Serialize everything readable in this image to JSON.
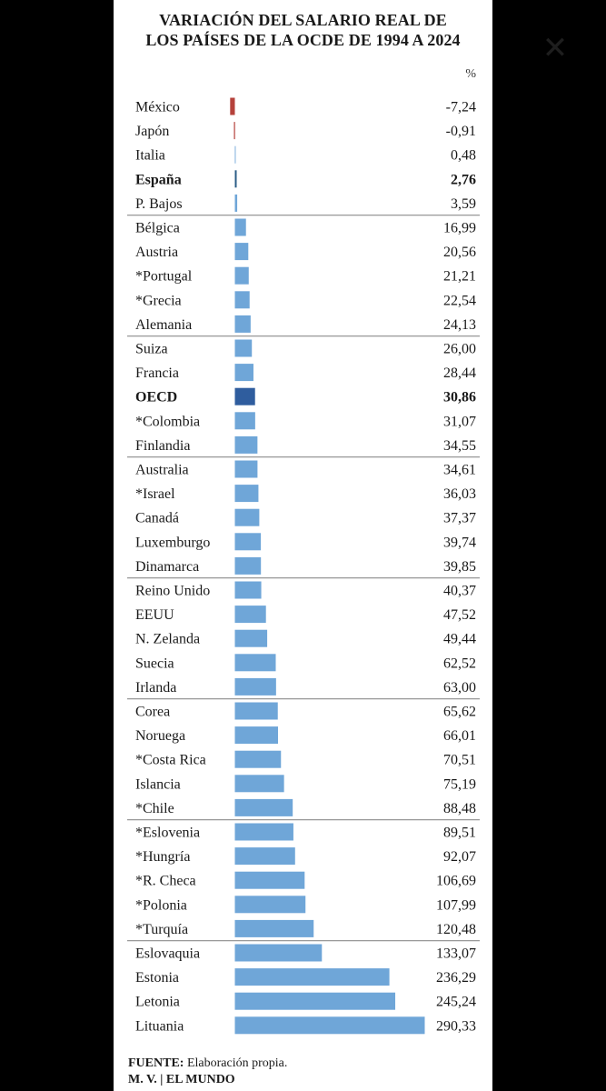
{
  "title_line1": "VARIACIÓN DEL SALARIO REAL DE",
  "title_line2": "LOS PAÍSES DE LA OCDE DE 1994 A 2024",
  "footer": {
    "source_label": "FUENTE:",
    "source_text": " Elaboración propia.",
    "credit": "M. V. | EL MUNDO"
  },
  "colors": {
    "bar": "#6fa6d8",
    "bar_negative": "#b5423b",
    "bar_spain": "#2a5c86",
    "bar_oecd": "#2f5d9e",
    "separator": "#8c8c8c"
  },
  "chart_data": {
    "type": "bar",
    "orientation": "horizontal",
    "unit": "%",
    "title": "VARIACIÓN DEL SALARIO REAL DE LOS PAÍSES DE LA OCDE DE 1994 A 2024",
    "categories": [
      "México",
      "Japón",
      "Italia",
      "España",
      "P. Bajos",
      "Bélgica",
      "Austria",
      "*Portugal",
      "*Grecia",
      "Alemania",
      "Suiza",
      "Francia",
      "OECD",
      "*Colombia",
      "Finlandia",
      "Australia",
      "*Israel",
      "Canadá",
      "Luxemburgo",
      "Dinamarca",
      "Reino Unido",
      "EEUU",
      "N. Zelanda",
      "Suecia",
      "Irlanda",
      "Corea",
      "Noruega",
      "*Costa Rica",
      "Islancia",
      "*Chile",
      "*Eslovenia",
      "*Hungría",
      "*R. Checa",
      "*Polonia",
      "*Turquía",
      "Eslovaquia",
      "Estonia",
      "Letonia",
      "Lituania"
    ],
    "values": [
      -7.24,
      -0.91,
      0.48,
      2.76,
      3.59,
      16.99,
      20.56,
      21.21,
      22.54,
      24.13,
      26.0,
      28.44,
      30.86,
      31.07,
      34.55,
      34.61,
      36.03,
      37.37,
      39.74,
      39.85,
      40.37,
      47.52,
      49.44,
      62.52,
      63.0,
      65.62,
      66.01,
      70.51,
      75.19,
      88.48,
      89.51,
      92.07,
      106.69,
      107.99,
      120.48,
      133.07,
      236.29,
      245.24,
      290.33
    ],
    "value_labels": [
      "-7,24",
      "-0,91",
      "0,48",
      "2,76",
      "3,59",
      "16,99",
      "20,56",
      "21,21",
      "22,54",
      "24,13",
      "26,00",
      "28,44",
      "30,86",
      "31,07",
      "34,55",
      "34,61",
      "36,03",
      "37,37",
      "39,74",
      "39,85",
      "40,37",
      "47,52",
      "49,44",
      "62,52",
      "63,00",
      "65,62",
      "66,01",
      "70,51",
      "75,19",
      "88,48",
      "89,51",
      "92,07",
      "106,69",
      "107,99",
      "120,48",
      "133,07",
      "236,29",
      "245,24",
      "290,33"
    ],
    "highlighted": [
      "España",
      "OECD"
    ],
    "xlim": [
      -7.24,
      290.33
    ],
    "grid": false
  }
}
